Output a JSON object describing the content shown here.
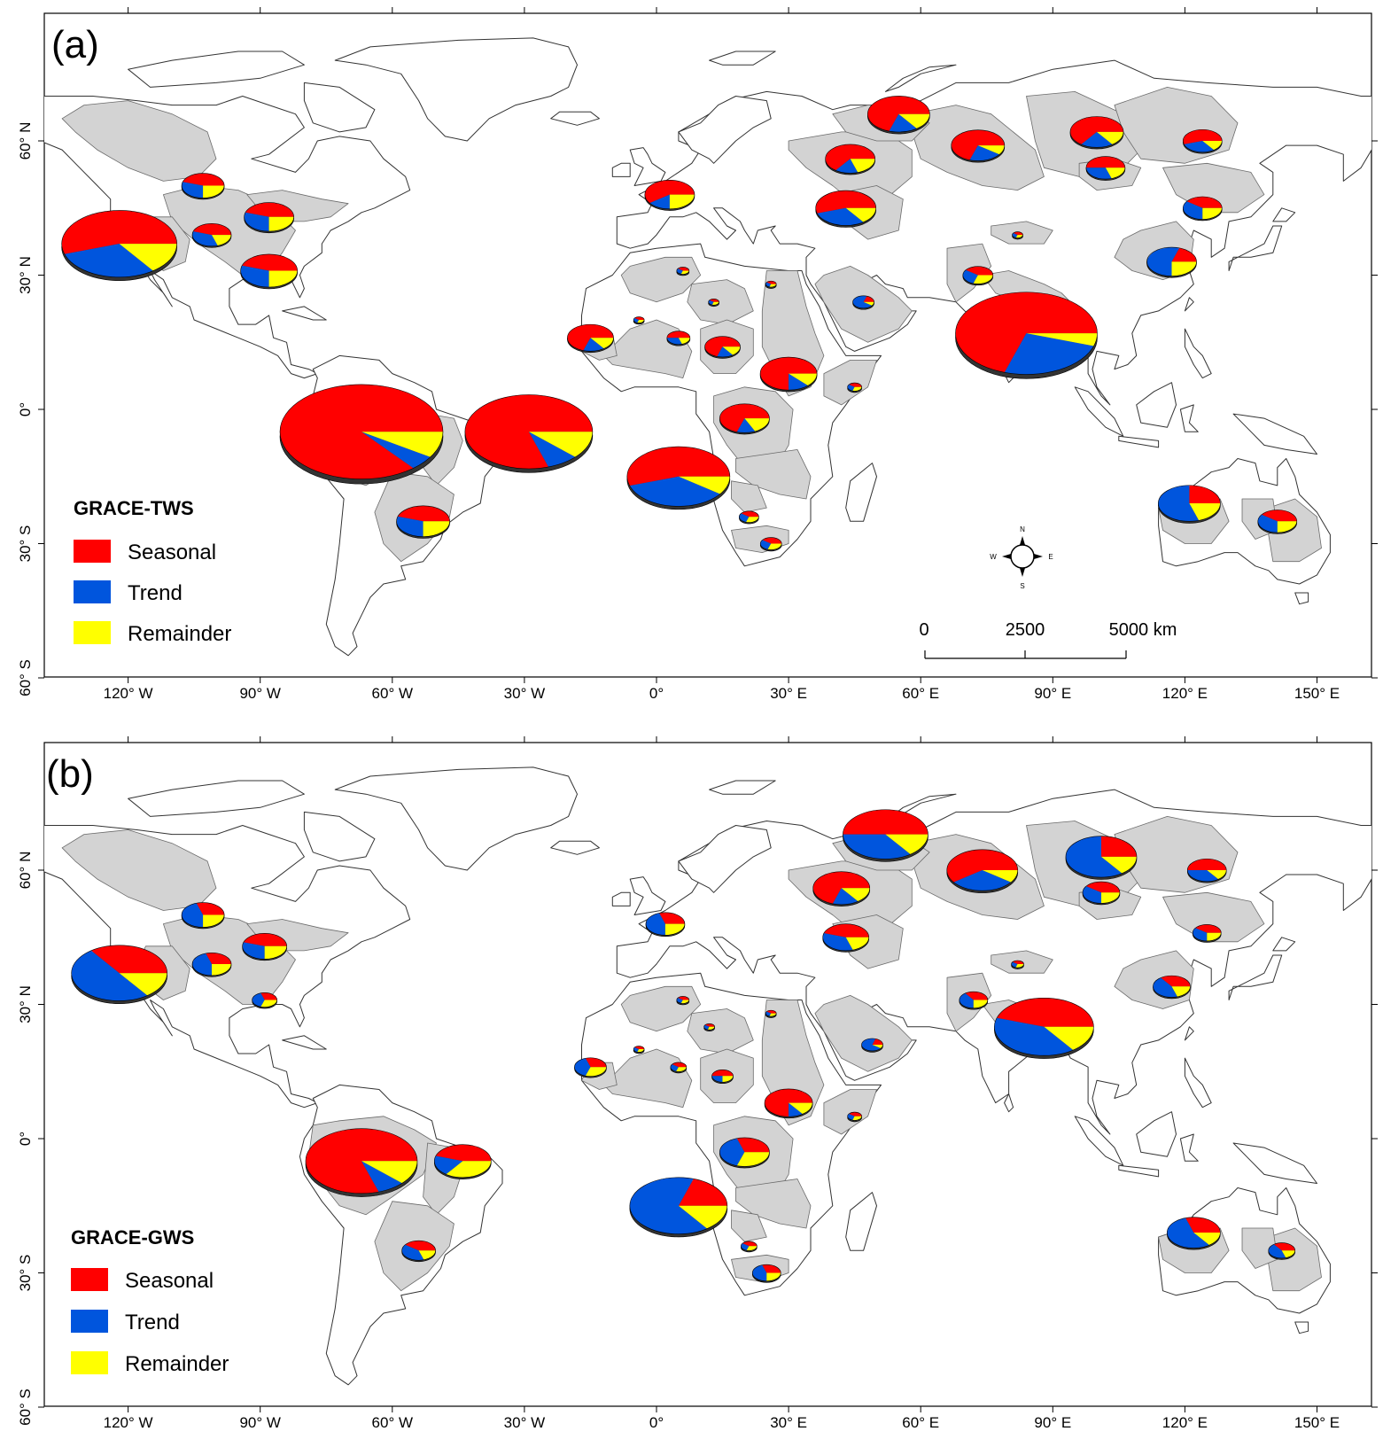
{
  "colors": {
    "seasonal": "#ff0000",
    "trend": "#0055dd",
    "remainder": "#ffff00",
    "basin": "#d3d3d3",
    "land": "#ffffff",
    "coast": "#333333"
  },
  "axes": {
    "x_ticks": [
      "120° W",
      "90° W",
      "60° W",
      "30° W",
      "0°",
      "30° E",
      "60° E",
      "90° E",
      "120° E",
      "150° E"
    ],
    "x_values": [
      -120,
      -90,
      -60,
      -30,
      0,
      30,
      60,
      90,
      120,
      150
    ],
    "y_ticks": [
      "60° N",
      "30° N",
      "0°",
      "30° S",
      "60° S"
    ],
    "y_values": [
      60,
      30,
      0,
      -30,
      -60
    ],
    "lon_range": [
      -140,
      157
    ],
    "lat_range": [
      -60,
      84
    ]
  },
  "panels": [
    {
      "label": "(a)",
      "legend": {
        "title": "GRACE-TWS",
        "items": [
          "Seasonal",
          "Trend",
          "Remainder"
        ]
      },
      "scalebar": {
        "labels": [
          "0",
          "2500",
          "5000 km"
        ]
      },
      "compass": {
        "n": "N",
        "s": "S",
        "e": "E",
        "w": "W"
      },
      "pies": [
        {
          "lon": -122,
          "lat": 37,
          "r": 65,
          "s": 0.55,
          "t": 0.3,
          "m": 0.15
        },
        {
          "lon": -103,
          "lat": 50,
          "r": 24,
          "s": 0.45,
          "t": 0.3,
          "m": 0.25
        },
        {
          "lon": -101,
          "lat": 39,
          "r": 22,
          "s": 0.45,
          "t": 0.35,
          "m": 0.2
        },
        {
          "lon": -88,
          "lat": 43,
          "r": 28,
          "s": 0.45,
          "t": 0.3,
          "m": 0.25
        },
        {
          "lon": -88,
          "lat": 31,
          "r": 32,
          "s": 0.45,
          "t": 0.3,
          "m": 0.25
        },
        {
          "lon": -67,
          "lat": -5,
          "r": 92,
          "s": 0.86,
          "t": 0.05,
          "m": 0.09
        },
        {
          "lon": -29,
          "lat": -5,
          "r": 72,
          "s": 0.8,
          "t": 0.08,
          "m": 0.12
        },
        {
          "lon": -53,
          "lat": -25,
          "r": 30,
          "s": 0.45,
          "t": 0.3,
          "m": 0.25
        },
        {
          "lon": -15,
          "lat": 16,
          "r": 26,
          "s": 0.7,
          "t": 0.15,
          "m": 0.15
        },
        {
          "lon": -4,
          "lat": 20,
          "r": 6,
          "s": 0.4,
          "t": 0.3,
          "m": 0.3
        },
        {
          "lon": 6,
          "lat": 31,
          "r": 7,
          "s": 0.4,
          "t": 0.3,
          "m": 0.3
        },
        {
          "lon": 13,
          "lat": 24,
          "r": 6,
          "s": 0.4,
          "t": 0.3,
          "m": 0.3
        },
        {
          "lon": 26,
          "lat": 28,
          "r": 6,
          "s": 0.4,
          "t": 0.3,
          "m": 0.3
        },
        {
          "lon": 5,
          "lat": 16,
          "r": 13,
          "s": 0.5,
          "t": 0.3,
          "m": 0.2
        },
        {
          "lon": 15,
          "lat": 14,
          "r": 20,
          "s": 0.7,
          "t": 0.15,
          "m": 0.15
        },
        {
          "lon": 30,
          "lat": 8,
          "r": 32,
          "s": 0.75,
          "t": 0.12,
          "m": 0.13
        },
        {
          "lon": 20,
          "lat": -2,
          "r": 28,
          "s": 0.7,
          "t": 0.12,
          "m": 0.18
        },
        {
          "lon": 5,
          "lat": -15,
          "r": 58,
          "s": 0.55,
          "t": 0.35,
          "m": 0.1
        },
        {
          "lon": 21,
          "lat": -24,
          "r": 11,
          "s": 0.4,
          "t": 0.3,
          "m": 0.3
        },
        {
          "lon": 26,
          "lat": -30,
          "r": 12,
          "s": 0.4,
          "t": 0.3,
          "m": 0.3
        },
        {
          "lon": 45,
          "lat": 5,
          "r": 8,
          "s": 0.4,
          "t": 0.3,
          "m": 0.3
        },
        {
          "lon": 47,
          "lat": 24,
          "r": 12,
          "s": 0.2,
          "t": 0.7,
          "m": 0.1
        },
        {
          "lon": 3,
          "lat": 48,
          "r": 28,
          "s": 0.6,
          "t": 0.15,
          "m": 0.25
        },
        {
          "lon": 43,
          "lat": 45,
          "r": 34,
          "s": 0.55,
          "t": 0.3,
          "m": 0.15
        },
        {
          "lon": 44,
          "lat": 56,
          "r": 28,
          "s": 0.65,
          "t": 0.15,
          "m": 0.2
        },
        {
          "lon": 55,
          "lat": 66,
          "r": 35,
          "s": 0.7,
          "t": 0.15,
          "m": 0.15
        },
        {
          "lon": 73,
          "lat": 59,
          "r": 30,
          "s": 0.7,
          "t": 0.2,
          "m": 0.1
        },
        {
          "lon": 100,
          "lat": 62,
          "r": 30,
          "s": 0.65,
          "t": 0.2,
          "m": 0.15
        },
        {
          "lon": 102,
          "lat": 54,
          "r": 22,
          "s": 0.5,
          "t": 0.3,
          "m": 0.2
        },
        {
          "lon": 124,
          "lat": 60,
          "r": 22,
          "s": 0.55,
          "t": 0.3,
          "m": 0.15
        },
        {
          "lon": 124,
          "lat": 45,
          "r": 22,
          "s": 0.4,
          "t": 0.35,
          "m": 0.25
        },
        {
          "lon": 117,
          "lat": 33,
          "r": 28,
          "s": 0.2,
          "t": 0.55,
          "m": 0.25
        },
        {
          "lon": 73,
          "lat": 30,
          "r": 17,
          "s": 0.4,
          "t": 0.3,
          "m": 0.3
        },
        {
          "lon": 82,
          "lat": 39,
          "r": 6,
          "s": 0.4,
          "t": 0.3,
          "m": 0.3
        },
        {
          "lon": 84,
          "lat": 17,
          "r": 80,
          "s": 0.7,
          "t": 0.25,
          "m": 0.05
        },
        {
          "lon": 121,
          "lat": -21,
          "r": 35,
          "s": 0.25,
          "t": 0.55,
          "m": 0.2
        },
        {
          "lon": 141,
          "lat": -25,
          "r": 22,
          "s": 0.4,
          "t": 0.35,
          "m": 0.25
        }
      ]
    },
    {
      "label": "(b)",
      "legend": {
        "title": "GRACE-GWS",
        "items": [
          "Seasonal",
          "Trend",
          "Remainder"
        ]
      },
      "pies": [
        {
          "lon": -122,
          "lat": 37,
          "r": 54,
          "s": 0.35,
          "t": 0.5,
          "m": 0.15
        },
        {
          "lon": -103,
          "lat": 50,
          "r": 24,
          "s": 0.3,
          "t": 0.45,
          "m": 0.25
        },
        {
          "lon": -101,
          "lat": 39,
          "r": 22,
          "s": 0.3,
          "t": 0.45,
          "m": 0.25
        },
        {
          "lon": -89,
          "lat": 43,
          "r": 25,
          "s": 0.45,
          "t": 0.3,
          "m": 0.25
        },
        {
          "lon": -89,
          "lat": 31,
          "r": 14,
          "s": 0.3,
          "t": 0.4,
          "m": 0.3
        },
        {
          "lon": -67,
          "lat": -5,
          "r": 63,
          "s": 0.8,
          "t": 0.08,
          "m": 0.12
        },
        {
          "lon": -44,
          "lat": -5,
          "r": 32,
          "s": 0.45,
          "t": 0.2,
          "m": 0.35
        },
        {
          "lon": -54,
          "lat": -25,
          "r": 19,
          "s": 0.4,
          "t": 0.4,
          "m": 0.2
        },
        {
          "lon": -15,
          "lat": 16,
          "r": 18,
          "s": 0.3,
          "t": 0.4,
          "m": 0.3
        },
        {
          "lon": -4,
          "lat": 20,
          "r": 6,
          "s": 0.4,
          "t": 0.3,
          "m": 0.3
        },
        {
          "lon": 6,
          "lat": 31,
          "r": 7,
          "s": 0.4,
          "t": 0.3,
          "m": 0.3
        },
        {
          "lon": 12,
          "lat": 25,
          "r": 6,
          "s": 0.4,
          "t": 0.3,
          "m": 0.3
        },
        {
          "lon": 26,
          "lat": 28,
          "r": 6,
          "s": 0.4,
          "t": 0.3,
          "m": 0.3
        },
        {
          "lon": 5,
          "lat": 16,
          "r": 9,
          "s": 0.4,
          "t": 0.3,
          "m": 0.3
        },
        {
          "lon": 15,
          "lat": 14,
          "r": 12,
          "s": 0.5,
          "t": 0.25,
          "m": 0.25
        },
        {
          "lon": 30,
          "lat": 8,
          "r": 27,
          "s": 0.75,
          "t": 0.1,
          "m": 0.15
        },
        {
          "lon": 20,
          "lat": -3,
          "r": 28,
          "s": 0.3,
          "t": 0.4,
          "m": 0.3
        },
        {
          "lon": 5,
          "lat": -15,
          "r": 55,
          "s": 0.2,
          "t": 0.65,
          "m": 0.15
        },
        {
          "lon": 21,
          "lat": -24,
          "r": 9,
          "s": 0.4,
          "t": 0.3,
          "m": 0.3
        },
        {
          "lon": 25,
          "lat": -30,
          "r": 16,
          "s": 0.3,
          "t": 0.45,
          "m": 0.25
        },
        {
          "lon": 45,
          "lat": 5,
          "r": 8,
          "s": 0.4,
          "t": 0.3,
          "m": 0.3
        },
        {
          "lon": 49,
          "lat": 21,
          "r": 12,
          "s": 0.2,
          "t": 0.7,
          "m": 0.1
        },
        {
          "lon": 2,
          "lat": 48,
          "r": 22,
          "s": 0.3,
          "t": 0.45,
          "m": 0.25
        },
        {
          "lon": 43,
          "lat": 45,
          "r": 26,
          "s": 0.45,
          "t": 0.35,
          "m": 0.2
        },
        {
          "lon": 42,
          "lat": 56,
          "r": 32,
          "s": 0.7,
          "t": 0.15,
          "m": 0.15
        },
        {
          "lon": 52,
          "lat": 68,
          "r": 48,
          "s": 0.5,
          "t": 0.35,
          "m": 0.15
        },
        {
          "lon": 74,
          "lat": 60,
          "r": 40,
          "s": 0.6,
          "t": 0.3,
          "m": 0.1
        },
        {
          "lon": 101,
          "lat": 63,
          "r": 40,
          "s": 0.25,
          "t": 0.6,
          "m": 0.15
        },
        {
          "lon": 101,
          "lat": 55,
          "r": 21,
          "s": 0.4,
          "t": 0.35,
          "m": 0.25
        },
        {
          "lon": 125,
          "lat": 60,
          "r": 22,
          "s": 0.5,
          "t": 0.35,
          "m": 0.15
        },
        {
          "lon": 125,
          "lat": 46,
          "r": 16,
          "s": 0.4,
          "t": 0.35,
          "m": 0.25
        },
        {
          "lon": 117,
          "lat": 34,
          "r": 21,
          "s": 0.35,
          "t": 0.45,
          "m": 0.2
        },
        {
          "lon": 72,
          "lat": 31,
          "r": 16,
          "s": 0.35,
          "t": 0.4,
          "m": 0.25
        },
        {
          "lon": 82,
          "lat": 39,
          "r": 7,
          "s": 0.4,
          "t": 0.3,
          "m": 0.3
        },
        {
          "lon": 88,
          "lat": 25,
          "r": 56,
          "s": 0.45,
          "t": 0.4,
          "m": 0.15
        },
        {
          "lon": 122,
          "lat": -21,
          "r": 30,
          "s": 0.3,
          "t": 0.55,
          "m": 0.15
        },
        {
          "lon": 142,
          "lat": -25,
          "r": 15,
          "s": 0.35,
          "t": 0.45,
          "m": 0.2
        }
      ]
    }
  ]
}
